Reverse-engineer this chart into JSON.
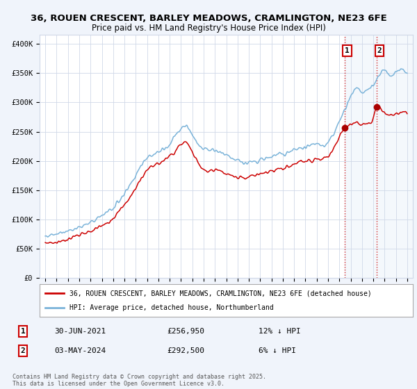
{
  "title_line1": "36, ROUEN CRESCENT, BARLEY MEADOWS, CRAMLINGTON, NE23 6FE",
  "title_line2": "Price paid vs. HM Land Registry's House Price Index (HPI)",
  "ylabel_ticks": [
    "£0",
    "£50K",
    "£100K",
    "£150K",
    "£200K",
    "£250K",
    "£300K",
    "£350K",
    "£400K"
  ],
  "ytick_values": [
    0,
    50000,
    100000,
    150000,
    200000,
    250000,
    300000,
    350000,
    400000
  ],
  "ylim": [
    0,
    415000
  ],
  "xlim_start": 1994.5,
  "xlim_end": 2027.5,
  "hpi_color": "#7ab3d9",
  "price_color": "#cc0000",
  "sale1_x": 2021.497,
  "sale1_y": 256950,
  "sale2_x": 2024.33,
  "sale2_y": 292500,
  "dashed_line_color": "#cc0000",
  "marker_color": "#aa0000",
  "legend_label_red": "36, ROUEN CRESCENT, BARLEY MEADOWS, CRAMLINGTON, NE23 6FE (detached house)",
  "legend_label_blue": "HPI: Average price, detached house, Northumberland",
  "annotation1_label": "1",
  "annotation1_date": "30-JUN-2021",
  "annotation1_price": "£256,950",
  "annotation1_hpi": "12% ↓ HPI",
  "annotation2_label": "2",
  "annotation2_date": "03-MAY-2024",
  "annotation2_price": "£292,500",
  "annotation2_hpi": "6% ↓ HPI",
  "footer": "Contains HM Land Registry data © Crown copyright and database right 2025.\nThis data is licensed under the Open Government Licence v3.0.",
  "bg_color": "#f0f4fb",
  "plot_bg": "#ffffff",
  "shaded_region_x1": 2021.497,
  "shaded_region_x2": 2027.5,
  "grid_color": "#d0d8e8"
}
